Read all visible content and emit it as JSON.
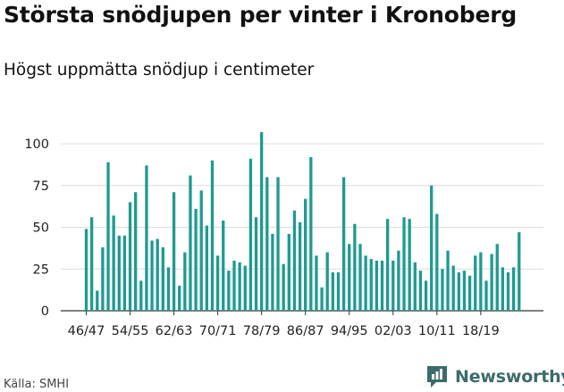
{
  "title": "Största snödjupen per vinter i Kronoberg",
  "subtitle": "Högst uppmätta snödjup i centimeter",
  "source": "Källa: SMHI",
  "brand": {
    "name": "Newsworthy",
    "icon": "newsworthy-logo-icon",
    "color": "#3d6b6b"
  },
  "chart_data": {
    "type": "bar",
    "bar_color": "#1f9a91",
    "grid": true,
    "ylim": [
      0,
      110
    ],
    "yticks": [
      0,
      25,
      50,
      75,
      100
    ],
    "xtick_labels": [
      "46/47",
      "54/55",
      "62/63",
      "70/71",
      "78/79",
      "86/87",
      "94/95",
      "02/03",
      "10/11",
      "18/19"
    ],
    "values": [
      49,
      56,
      12,
      38,
      89,
      57,
      45,
      45,
      65,
      71,
      18,
      87,
      42,
      43,
      38,
      26,
      71,
      15,
      35,
      81,
      61,
      72,
      51,
      90,
      33,
      54,
      24,
      30,
      29,
      27,
      91,
      56,
      107,
      80,
      46,
      80,
      28,
      46,
      60,
      53,
      67,
      92,
      33,
      14,
      35,
      23,
      23,
      80,
      40,
      52,
      40,
      33,
      31,
      30,
      30,
      55,
      30,
      36,
      56,
      55,
      29,
      24,
      18,
      75,
      58,
      25,
      36,
      27,
      23,
      24,
      21,
      33,
      35,
      18,
      34,
      40,
      26,
      23,
      26,
      47
    ]
  }
}
